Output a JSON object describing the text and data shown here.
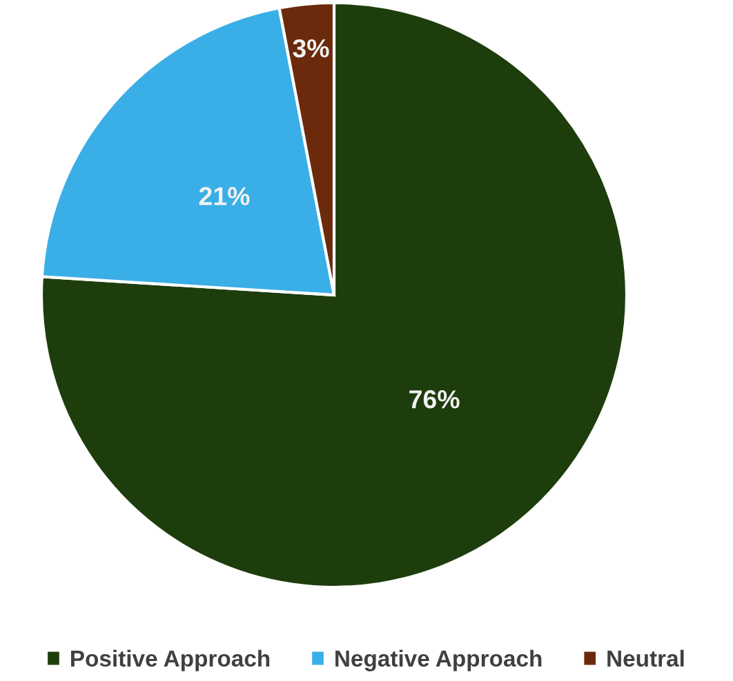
{
  "chart_data": {
    "type": "pie",
    "categories": [
      "Positive Approach",
      "Negative Approach",
      "Neutral"
    ],
    "values": [
      76,
      21,
      3
    ],
    "colors": [
      "#1e3d0c",
      "#3aaee6",
      "#6b2a0c"
    ],
    "value_labels": [
      "76%",
      "21%",
      "3%"
    ],
    "legend": "bottom"
  }
}
